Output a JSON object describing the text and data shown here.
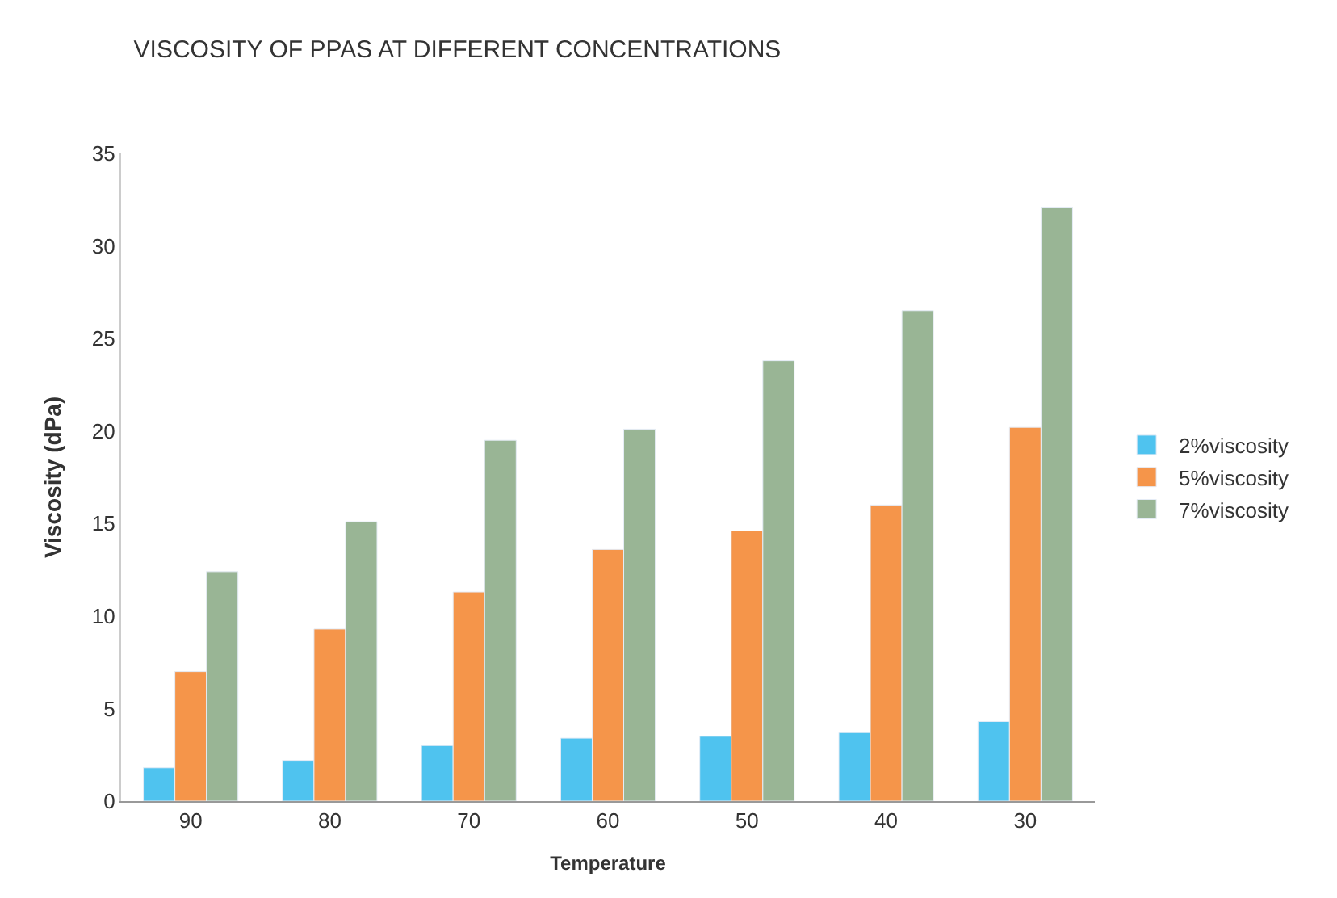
{
  "chart_data": {
    "type": "bar",
    "title": "VISCOSITY OF PPAS AT DIFFERENT CONCENTRATIONS",
    "xlabel": "Temperature",
    "ylabel": "Viscosity (dPa)",
    "categories": [
      "90",
      "80",
      "70",
      "60",
      "50",
      "40",
      "30"
    ],
    "series": [
      {
        "name": "2%viscosity",
        "color": "#4fc3ef",
        "values": [
          1.8,
          2.2,
          3.0,
          3.4,
          3.5,
          3.7,
          4.3
        ]
      },
      {
        "name": "5%viscosity",
        "color": "#f5954a",
        "values": [
          7.0,
          9.3,
          11.3,
          13.6,
          14.6,
          16.0,
          20.2
        ]
      },
      {
        "name": "7%viscosity",
        "color": "#99b595",
        "values": [
          12.4,
          15.1,
          19.5,
          20.1,
          23.8,
          26.5,
          32.1
        ]
      }
    ],
    "ylim": [
      0,
      35
    ],
    "yticks": [
      0,
      5,
      10,
      15,
      20,
      25,
      30,
      35
    ],
    "grid": false,
    "legend": "right"
  }
}
